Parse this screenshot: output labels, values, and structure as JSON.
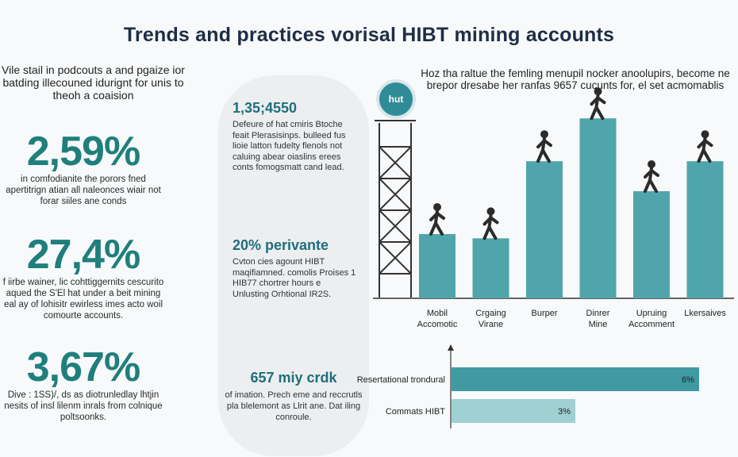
{
  "title": "Trends and practices vorisal HIBT mining accounts",
  "intro": "Vile stail in podcouts a and pgaize ior batding illecouned idurignt for unis to theoh a coaision",
  "stats": [
    {
      "value": "2,59%",
      "desc": "in comfodianite the porors fned apertitrign atian all naleonces wiair not forar siiles ane conds"
    },
    {
      "value": "27,4%",
      "desc": "f iirbe wainer, lic cohttiggernits cescurito aqued the S'El hat under a beit mining eal ay of lohisitr ewirless imes acto woil comourte accounts."
    },
    {
      "value": "3,67%",
      "desc": "Dive : 1SS)/, ds as diotrunledlay lhtjin nesits of insl lilenm inrals from colnique poltsoonks."
    }
  ],
  "middle": [
    {
      "heading": "1,35;4550",
      "text": "Defeure of hat cmiris Btoche feait Plerasisinps. bulleed fus lioie latton fudelty flenols not caluing abear oiaslins erees conts fomogsmatt cand lead."
    },
    {
      "heading": "20% perivante",
      "text": "Cvton cies agount HIBT maqifiamned. comolis Proises 1 HIB77 chortrer hours e Unlusting Orhtional IR2S."
    },
    {
      "heading": "657 miy crdk",
      "text": "of imation. Prech eme and reccrutls pla blelemont as Llrit ane. Dat iling conroule."
    }
  ],
  "right_title": "Hoz tha raltue the femling menupil nocker anoolupirs, become ne brepor dresabe her ranfas 9657 cucunts for, el set acmomablis",
  "badge": "hut",
  "chart_data": [
    {
      "type": "bar",
      "categories": [
        "Mobil Accomotic",
        "Crgaing Virane",
        "Burper",
        "Dinrer Mine",
        "Upruing Accomment",
        "Lkersaives"
      ],
      "values": [
        30,
        28,
        64,
        84,
        50,
        64
      ],
      "ylim": [
        0,
        100
      ],
      "grid": false,
      "color": "#4fa5ab"
    },
    {
      "type": "bar",
      "orientation": "horizontal",
      "categories": [
        "Resertational trondural",
        "Commats HIBT"
      ],
      "values": [
        6,
        3
      ],
      "value_labels": [
        "6%",
        "3%"
      ],
      "xlim": [
        0,
        6
      ],
      "colors": [
        "#3f9aa2",
        "#9fd0d2"
      ]
    }
  ]
}
